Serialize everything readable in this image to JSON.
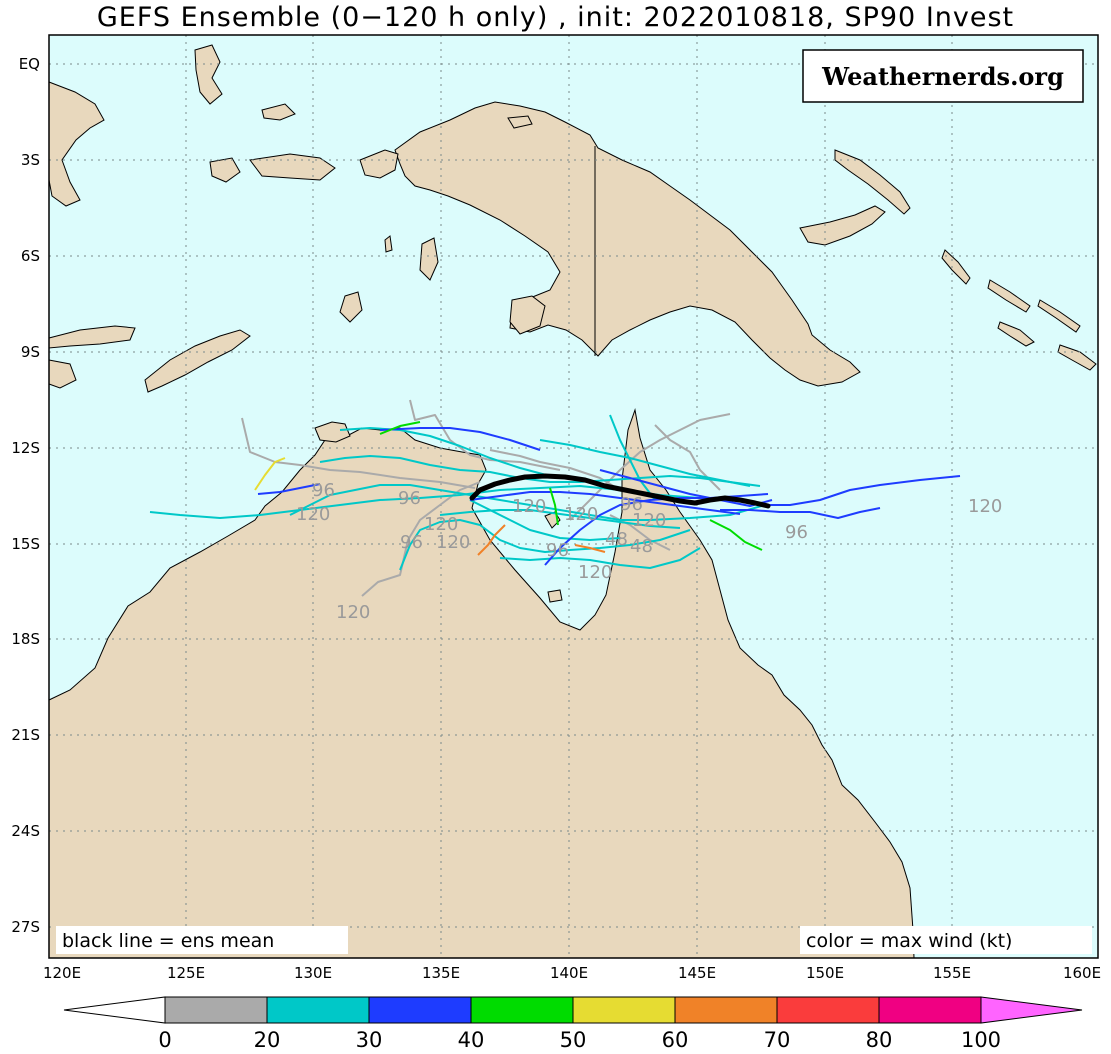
{
  "title": "GEFS Ensemble (0−120 h only) , init: 2022010818, SP90 Invest",
  "watermark": "Weathernerds.org",
  "legend_left": "black line = ens mean",
  "legend_right": "color = max wind (kt)",
  "lat_labels": [
    "EQ",
    "3S",
    "6S",
    "9S",
    "12S",
    "15S",
    "18S",
    "21S",
    "24S",
    "27S"
  ],
  "lon_labels": [
    "120E",
    "125E",
    "130E",
    "135E",
    "140E",
    "145E",
    "150E",
    "155E",
    "160E"
  ],
  "colorbar": {
    "tick_labels": [
      "0",
      "20",
      "30",
      "40",
      "50",
      "60",
      "70",
      "80",
      "100"
    ],
    "colors": [
      "#aaaaaa",
      "#00c8c8",
      "#1e3cff",
      "#00dc00",
      "#e6dc32",
      "#f08228",
      "#fa3c3c",
      "#f00082",
      "#ff64ff"
    ]
  },
  "colors": {
    "ocean": "#dcfcfc",
    "land": "#e8d8bd",
    "mean_track": "#000000",
    "forecast_hour_label": "#9a9a9a"
  },
  "forecast_hour_labels": [
    "120",
    "96",
    "120",
    "96",
    "120",
    "120",
    "96",
    "120",
    "120",
    "96",
    "120",
    "120",
    "48",
    "96",
    "120",
    "48",
    "96"
  ],
  "map": {
    "projection": "lat-lon",
    "lon_range": [
      120,
      160
    ],
    "lat_range": [
      -28.5,
      1.5
    ],
    "grid": "dotted, every 5° longitude and 3° latitude"
  }
}
